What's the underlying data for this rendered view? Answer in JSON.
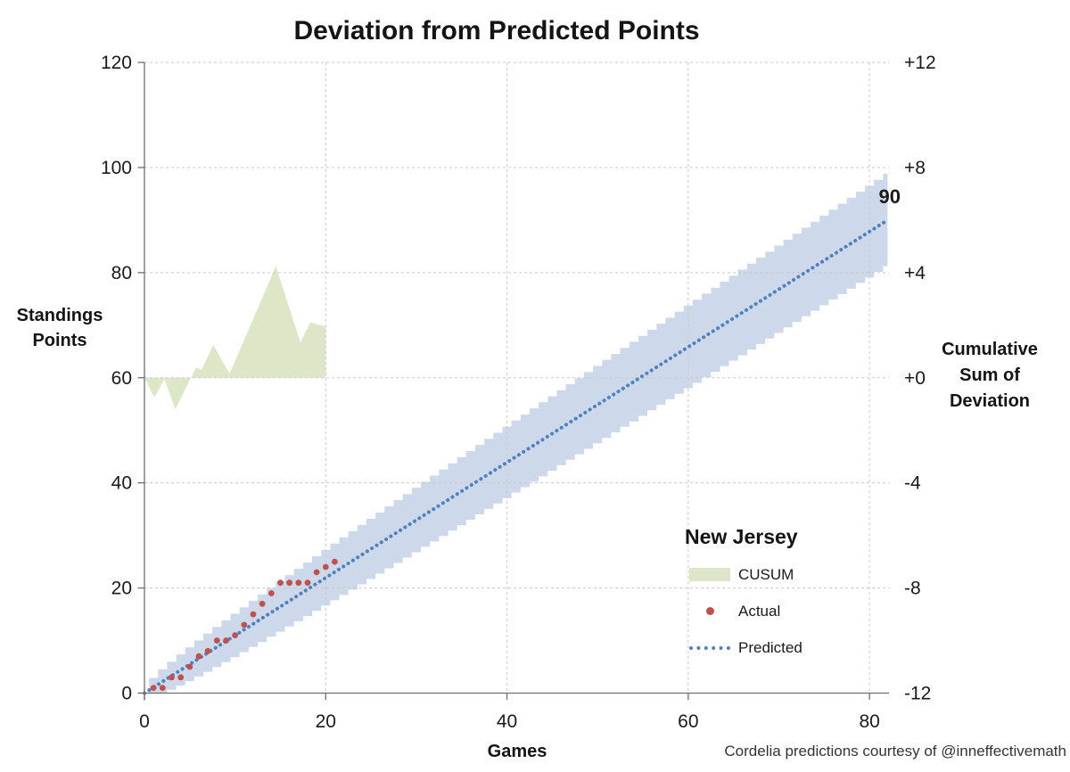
{
  "chart": {
    "title": "Deviation from Predicted Points"
  },
  "axes": {
    "x": {
      "title": "Games",
      "ticks": [
        "0",
        "20",
        "40",
        "60",
        "80"
      ],
      "tick_values": [
        0,
        20,
        40,
        60,
        80
      ],
      "range": [
        0,
        82.2
      ]
    },
    "left": {
      "title_lines": [
        "Standings",
        "Points"
      ],
      "ticks": [
        "0",
        "20",
        "40",
        "60",
        "80",
        "100",
        "120"
      ],
      "tick_values": [
        0,
        20,
        40,
        60,
        80,
        100,
        120
      ],
      "range": [
        0,
        120
      ]
    },
    "right": {
      "title_lines": [
        "Cumulative",
        "Sum of",
        "Deviation"
      ],
      "ticks": [
        "+12",
        "+8",
        "+4",
        "+0",
        "-4",
        "-8",
        "-12"
      ],
      "tick_values": [
        12,
        8,
        4,
        0,
        -4,
        -8,
        -12
      ],
      "range": [
        -12,
        12
      ]
    }
  },
  "legend": {
    "title": "New Jersey",
    "items": [
      {
        "label": "CUSUM"
      },
      {
        "label": "Actual"
      },
      {
        "label": "Predicted"
      }
    ]
  },
  "annotations": {
    "predicted_end_label": "90"
  },
  "footer": {
    "credit": "Cordelia predictions courtesy of @inneffectivemath"
  },
  "colors": {
    "cusum_fill": "#dde7c8",
    "band_fill": "#cdd9ea",
    "actual": "#c0504d",
    "predicted": "#4f81bd",
    "end_label": "#4f81bd",
    "gridline": "#c9c9c9",
    "axis": "#6e6e6e",
    "text": "#1a1a1a"
  },
  "chart_data": {
    "type": "line",
    "title": "Deviation from Predicted Points",
    "xlabel": "Games",
    "ylabel_left": "Standings Points",
    "ylabel_right": "Cumulative Sum of Deviation",
    "xlim": [
      0,
      82.2
    ],
    "ylim_left": [
      0,
      120
    ],
    "ylim_right": [
      -12,
      12
    ],
    "grid": "dashed",
    "legend_position": "inside lower-right",
    "series": [
      {
        "name": "CUSUM",
        "type": "area",
        "yaxis": "right",
        "baseline": 0,
        "points": [
          [
            0,
            0
          ],
          [
            1.1,
            -0.75
          ],
          [
            2.2,
            -0.05
          ],
          [
            3.4,
            -1.2
          ],
          [
            5.7,
            0.4
          ],
          [
            6.3,
            0.3
          ],
          [
            7.6,
            1.25
          ],
          [
            9.4,
            0.15
          ],
          [
            14.5,
            4.25
          ],
          [
            17.2,
            1.35
          ],
          [
            18.3,
            2.1
          ],
          [
            20,
            1.95
          ]
        ],
        "x_end": 20
      },
      {
        "name": "Actual",
        "type": "scatter",
        "yaxis": "left",
        "x": [
          1,
          2,
          3,
          4,
          5,
          6,
          7,
          8,
          9,
          10,
          11,
          12,
          13,
          14,
          15,
          16,
          17,
          18,
          19,
          20,
          21
        ],
        "values": [
          1,
          1,
          3,
          3,
          5,
          7,
          8,
          10,
          10,
          11,
          13,
          15,
          17,
          19,
          21,
          21,
          21,
          21,
          23,
          24,
          25
        ]
      },
      {
        "name": "Predicted",
        "type": "dotted_line",
        "yaxis": "left",
        "x": [
          0,
          82
        ],
        "values": [
          0,
          90
        ],
        "end_label": "90"
      },
      {
        "name": "prediction-band",
        "type": "step_band",
        "yaxis": "left",
        "x_start": 1,
        "x_end": 82,
        "slope": 1.0976,
        "half_width_coef": 1.8,
        "half_width_exp": 0.36
      }
    ]
  }
}
